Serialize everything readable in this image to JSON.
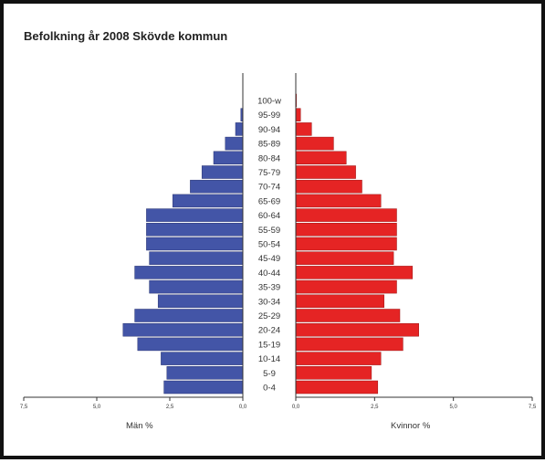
{
  "chart_data": {
    "type": "bar",
    "orientation": "population-pyramid",
    "title": "Befolkning år 2008 Skövde kommun",
    "categories": [
      "0-4",
      "5-9",
      "10-14",
      "15-19",
      "20-24",
      "25-29",
      "30-34",
      "35-39",
      "40-44",
      "45-49",
      "50-54",
      "55-59",
      "60-64",
      "65-69",
      "70-74",
      "75-79",
      "80-84",
      "85-89",
      "90-94",
      "95-99",
      "100-w"
    ],
    "series": [
      {
        "name": "Män %",
        "color": "#4355a7",
        "values": [
          2.7,
          2.6,
          2.8,
          3.6,
          4.1,
          3.7,
          2.9,
          3.2,
          3.7,
          3.2,
          3.3,
          3.3,
          3.3,
          2.4,
          1.8,
          1.4,
          1.0,
          0.6,
          0.25,
          0.07,
          0.0
        ]
      },
      {
        "name": "Kvinnor %",
        "color": "#e52424",
        "values": [
          2.6,
          2.4,
          2.7,
          3.4,
          3.9,
          3.3,
          2.8,
          3.2,
          3.7,
          3.1,
          3.2,
          3.2,
          3.2,
          2.7,
          2.1,
          1.9,
          1.6,
          1.2,
          0.5,
          0.15,
          0.02
        ]
      }
    ],
    "left_axis": {
      "label": "Män %",
      "ticks": [
        "7,5",
        "5,0",
        "2,5",
        "0,0"
      ],
      "range": [
        7.5,
        0
      ]
    },
    "right_axis": {
      "label": "Kvinnor %",
      "ticks": [
        "0,0",
        "2,5",
        "5,0",
        "7,5"
      ],
      "range": [
        0,
        7.5
      ]
    },
    "grid": false,
    "legend": "none"
  }
}
